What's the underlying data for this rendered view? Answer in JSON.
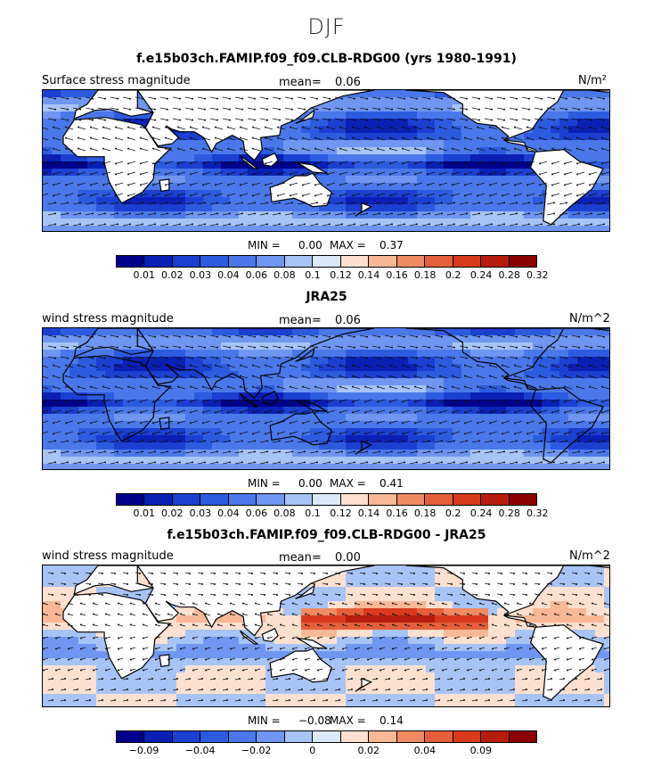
{
  "page_title": "DJF",
  "colors": {
    "scale": [
      "#00008b",
      "#0a20b5",
      "#1b3fd0",
      "#2d5be0",
      "#4a78ea",
      "#6f96f0",
      "#a7c4f6",
      "#dce9fb",
      "#fde0cf",
      "#f8b896",
      "#f08b61",
      "#e5603a",
      "#d93a1e",
      "#b71d0e",
      "#8b0000"
    ],
    "land": "#ffffff",
    "coast": "#000000",
    "arrow": "#111111"
  },
  "chart_data": [
    {
      "type": "heatmap",
      "title": "f.e15b03ch.FAMIP.f09_f09.CLB-RDG00 (yrs 1980-1991)",
      "field_label": "Surface stress magnitude",
      "mean_label": "mean=",
      "mean_value": "0.06",
      "units": "N/m²",
      "min_label": "MIN =",
      "min_value": "0.00",
      "max_label": "MAX =",
      "max_value": "0.37",
      "levels": [
        0.01,
        0.02,
        0.03,
        0.04,
        0.06,
        0.08,
        0.1,
        0.12,
        0.14,
        0.16,
        0.18,
        0.2,
        0.24,
        0.28,
        0.32
      ],
      "tick_labels": [
        "0.01",
        "0.02",
        "0.03",
        "0.04",
        "0.06",
        "0.08",
        "0.1",
        "0.12",
        "0.14",
        "0.16",
        "0.18",
        "0.2",
        "0.24",
        "0.28",
        "0.32"
      ],
      "longitude_range": [
        -30,
        330
      ],
      "latitude_range": [
        -60,
        60
      ]
    },
    {
      "type": "heatmap",
      "title": "JRA25",
      "field_label": "wind stress magnitude",
      "mean_label": "mean=",
      "mean_value": "0.06",
      "units": "N/m^2",
      "min_label": "MIN =",
      "min_value": "0.00",
      "max_label": "MAX =",
      "max_value": "0.41",
      "levels": [
        0.01,
        0.02,
        0.03,
        0.04,
        0.06,
        0.08,
        0.1,
        0.12,
        0.14,
        0.16,
        0.18,
        0.2,
        0.24,
        0.28,
        0.32
      ],
      "tick_labels": [
        "0.01",
        "0.02",
        "0.03",
        "0.04",
        "0.06",
        "0.08",
        "0.1",
        "0.12",
        "0.14",
        "0.16",
        "0.18",
        "0.2",
        "0.24",
        "0.28",
        "0.32"
      ],
      "longitude_range": [
        -30,
        330
      ],
      "latitude_range": [
        -60,
        60
      ]
    },
    {
      "type": "heatmap",
      "title": "f.e15b03ch.FAMIP.f09_f09.CLB-RDG00 - JRA25",
      "field_label": "wind stress magnitude",
      "mean_label": "mean=",
      "mean_value": "0.00",
      "units": "N/m^2",
      "min_label": "MIN =",
      "min_value": "−0.08",
      "max_label": "MAX =",
      "max_value": "0.14",
      "levels": [
        -0.09,
        -0.06,
        -0.04,
        -0.03,
        -0.02,
        -0.01,
        0,
        0.01,
        0.02,
        0.03,
        0.04,
        0.06,
        0.09
      ],
      "tick_labels": [
        "−0.09",
        "−0.04",
        "−0.02",
        "0",
        "0.02",
        "0.04",
        "0.09"
      ],
      "longitude_range": [
        -30,
        330
      ],
      "latitude_range": [
        -60,
        60
      ]
    }
  ]
}
